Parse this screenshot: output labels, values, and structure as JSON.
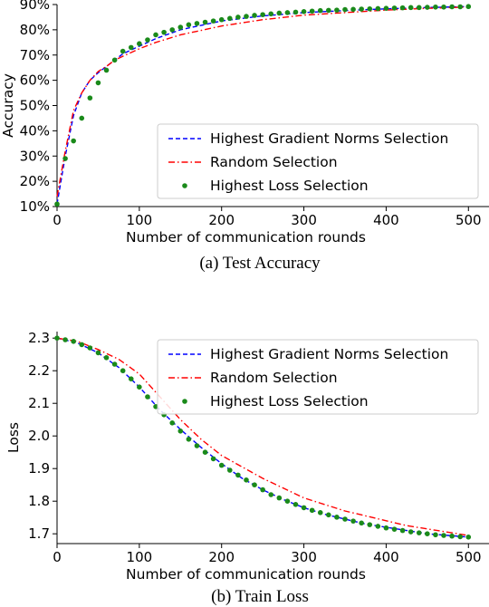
{
  "chart_data": [
    {
      "type": "line",
      "caption": "(a) Test Accuracy",
      "xlabel": "Number of communication rounds",
      "ylabel": "Accuracy",
      "xlim": [
        0,
        525
      ],
      "ylim": [
        10,
        90
      ],
      "xticks": [
        0,
        100,
        200,
        300,
        400,
        500
      ],
      "yticks": [
        10,
        20,
        30,
        40,
        50,
        60,
        70,
        80,
        90
      ],
      "ytick_suffix": "%",
      "grid": false,
      "legend_position": "bottom-right",
      "series": [
        {
          "name": "Highest Gradient Norms Selection",
          "style": "dashed",
          "color": "#0000ff",
          "x": [
            0,
            10,
            20,
            30,
            40,
            50,
            60,
            70,
            80,
            100,
            120,
            150,
            200,
            250,
            300,
            350,
            400,
            450,
            500
          ],
          "y": [
            11,
            30,
            46,
            55,
            60,
            63,
            65.5,
            68,
            70.5,
            73.5,
            76.5,
            80,
            83.5,
            85.5,
            86.8,
            87.6,
            88.3,
            88.8,
            89.2
          ]
        },
        {
          "name": "Random Selection",
          "style": "dashdot",
          "color": "#ff0000",
          "x": [
            0,
            10,
            20,
            30,
            40,
            50,
            60,
            70,
            80,
            100,
            120,
            150,
            200,
            250,
            300,
            350,
            400,
            450,
            500
          ],
          "y": [
            14,
            32,
            48,
            55,
            60,
            63.5,
            65.5,
            68,
            69.5,
            72.5,
            75,
            78,
            81.5,
            84,
            85.8,
            86.8,
            87.8,
            88.5,
            89
          ]
        },
        {
          "name": "Highest Loss Selection",
          "style": "markers",
          "color": "#1a8a1a",
          "x": [
            0,
            10,
            20,
            30,
            40,
            50,
            60,
            70,
            80,
            90,
            100,
            110,
            120,
            130,
            140,
            150,
            160,
            170,
            180,
            190,
            200,
            210,
            220,
            230,
            240,
            250,
            260,
            270,
            280,
            290,
            300,
            310,
            320,
            330,
            340,
            350,
            360,
            370,
            380,
            390,
            400,
            410,
            420,
            430,
            440,
            450,
            460,
            470,
            480,
            490,
            500
          ],
          "y": [
            11,
            29,
            36,
            45,
            53,
            59,
            64,
            68,
            71.5,
            73,
            74.5,
            76,
            78,
            79,
            80,
            81,
            82,
            82.5,
            83,
            83.5,
            84,
            84.5,
            85,
            85.3,
            85.7,
            86,
            86.3,
            86.6,
            86.8,
            87,
            87.2,
            87.4,
            87.6,
            87.7,
            87.8,
            88,
            88.1,
            88.2,
            88.3,
            88.4,
            88.5,
            88.6,
            88.7,
            88.8,
            88.8,
            88.9,
            89,
            89,
            89.1,
            89.1,
            89.2
          ]
        }
      ]
    },
    {
      "type": "line",
      "caption": "(b) Train Loss",
      "xlabel": "Number of communication rounds",
      "ylabel": "Loss",
      "xlim": [
        0,
        525
      ],
      "ylim": [
        1.67,
        2.32
      ],
      "xticks": [
        0,
        100,
        200,
        300,
        400,
        500
      ],
      "yticks": [
        1.7,
        1.8,
        1.9,
        2.0,
        2.1,
        2.2,
        2.3
      ],
      "ytick_suffix": "",
      "grid": false,
      "legend_position": "top-right",
      "series": [
        {
          "name": "Highest Gradient Norms Selection",
          "style": "dashed",
          "color": "#0000ff",
          "x": [
            0,
            25,
            50,
            75,
            100,
            125,
            150,
            175,
            200,
            225,
            250,
            275,
            300,
            325,
            350,
            375,
            400,
            425,
            450,
            475,
            500
          ],
          "y": [
            2.3,
            2.285,
            2.255,
            2.21,
            2.15,
            2.08,
            2.02,
            1.965,
            1.915,
            1.87,
            1.835,
            1.805,
            1.78,
            1.76,
            1.745,
            1.73,
            1.72,
            1.71,
            1.7,
            1.695,
            1.69
          ]
        },
        {
          "name": "Random Selection",
          "style": "dashdot",
          "color": "#ff0000",
          "x": [
            0,
            25,
            50,
            75,
            100,
            125,
            150,
            175,
            200,
            225,
            250,
            275,
            300,
            325,
            350,
            375,
            400,
            425,
            450,
            475,
            500
          ],
          "y": [
            2.3,
            2.29,
            2.265,
            2.235,
            2.19,
            2.12,
            2.05,
            1.99,
            1.94,
            1.905,
            1.87,
            1.84,
            1.81,
            1.79,
            1.77,
            1.755,
            1.74,
            1.725,
            1.715,
            1.705,
            1.695
          ]
        },
        {
          "name": "Highest Loss Selection",
          "style": "markers",
          "color": "#1a8a1a",
          "x": [
            0,
            10,
            20,
            30,
            40,
            50,
            60,
            70,
            80,
            90,
            100,
            110,
            120,
            130,
            140,
            150,
            160,
            170,
            180,
            190,
            200,
            210,
            220,
            230,
            240,
            250,
            260,
            270,
            280,
            290,
            300,
            310,
            320,
            330,
            340,
            350,
            360,
            370,
            380,
            390,
            400,
            410,
            420,
            430,
            440,
            450,
            460,
            470,
            480,
            490,
            500
          ],
          "y": [
            2.3,
            2.295,
            2.29,
            2.28,
            2.27,
            2.255,
            2.24,
            2.22,
            2.2,
            2.175,
            2.15,
            2.12,
            2.09,
            2.065,
            2.04,
            2.015,
            1.99,
            1.97,
            1.95,
            1.93,
            1.91,
            1.895,
            1.88,
            1.865,
            1.85,
            1.835,
            1.82,
            1.81,
            1.8,
            1.79,
            1.78,
            1.772,
            1.765,
            1.758,
            1.751,
            1.745,
            1.739,
            1.733,
            1.728,
            1.723,
            1.718,
            1.714,
            1.71,
            1.706,
            1.703,
            1.7,
            1.697,
            1.695,
            1.693,
            1.691,
            1.69
          ]
        }
      ]
    }
  ]
}
